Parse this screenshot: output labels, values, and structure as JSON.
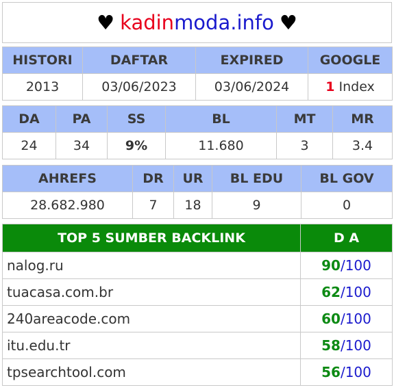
{
  "site": {
    "heart": "♥",
    "part1": "kadin",
    "part2": "moda.info"
  },
  "info": {
    "headers": [
      "HISTORI",
      "DAFTAR",
      "EXPIRED",
      "GOOGLE"
    ],
    "histori": "2013",
    "daftar": "03/06/2023",
    "expired": "03/06/2024",
    "google_count": "1",
    "google_label": "Index"
  },
  "metrics": {
    "headers": [
      "DA",
      "PA",
      "SS",
      "BL",
      "MT",
      "MR"
    ],
    "da": "24",
    "pa": "34",
    "ss": "9%",
    "bl": "11.680",
    "mt": "3",
    "mr": "3.4"
  },
  "ahrefs": {
    "headers": [
      "AHREFS",
      "DR",
      "UR",
      "BL EDU",
      "BL GOV"
    ],
    "ahrefs": "28.682.980",
    "dr": "7",
    "ur": "18",
    "bl_edu": "9",
    "bl_gov": "0"
  },
  "backlinks": {
    "header_source": "TOP 5 SUMBER BACKLINK",
    "header_da": "D A",
    "max": "100",
    "sep": "/",
    "rows": [
      {
        "domain": "nalog.ru",
        "score": "90"
      },
      {
        "domain": "tuacasa.com.br",
        "score": "62"
      },
      {
        "domain": "240areacode.com",
        "score": "60"
      },
      {
        "domain": "itu.edu.tr",
        "score": "58"
      },
      {
        "domain": "tpsearchtool.com",
        "score": "56"
      }
    ]
  },
  "colors": {
    "header_bg": "#a5bef9",
    "green_header": "#0a8a0a",
    "accent_red": "#e8001c",
    "accent_blue": "#1a1acd",
    "green_text": "#0d8a14"
  }
}
